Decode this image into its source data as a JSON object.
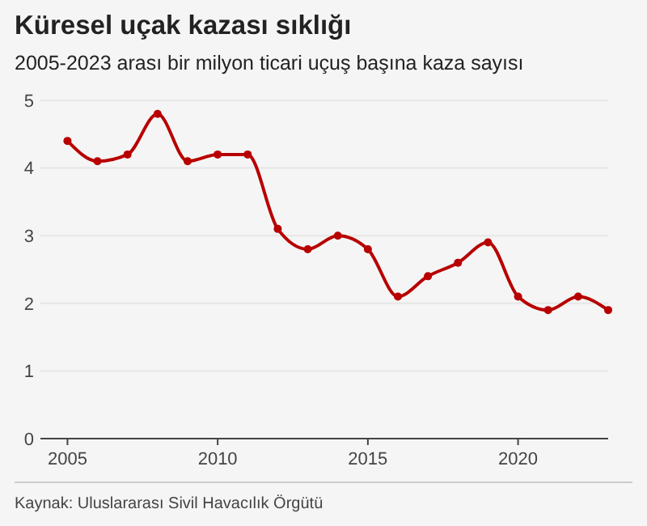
{
  "chart_data": {
    "type": "line",
    "title": "Küresel uçak kazası sıklığı",
    "subtitle": "2005-2023 arası bir milyon ticari uçuş başına kaza sayısı",
    "x": [
      2005,
      2006,
      2007,
      2008,
      2009,
      2010,
      2011,
      2012,
      2013,
      2014,
      2015,
      2016,
      2017,
      2018,
      2019,
      2020,
      2021,
      2022,
      2023
    ],
    "series": [
      {
        "color": "#b80000",
        "values": [
          4.4,
          4.1,
          4.2,
          4.8,
          4.1,
          4.2,
          4.2,
          3.1,
          2.8,
          3.0,
          2.8,
          2.1,
          2.4,
          2.6,
          2.9,
          2.1,
          1.9,
          2.1,
          1.9
        ]
      }
    ],
    "xlim": [
      2004.1,
      2023
    ],
    "xticks": [
      2005,
      2010,
      2015,
      2020
    ],
    "ylim": [
      0,
      5
    ],
    "yticks": [
      0,
      1,
      2,
      3,
      4,
      5
    ],
    "grid": "y",
    "marker": "circle",
    "line_style": "solid",
    "annotations": [
      "Kaynak: Uluslararası Sivil Havacılık Örgütü"
    ]
  }
}
